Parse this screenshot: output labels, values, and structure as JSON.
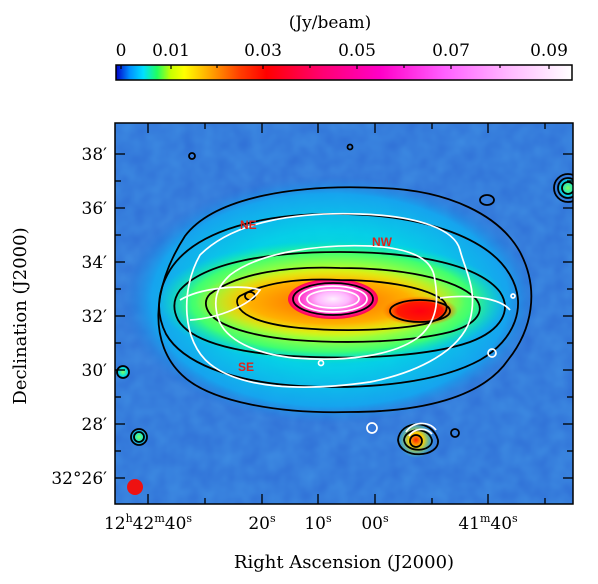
{
  "colorbar": {
    "unit": "(Jy/beam)",
    "ticks": [
      "0",
      "0.01",
      "0.03",
      "0.05",
      "0.07",
      "0.09"
    ]
  },
  "axes": {
    "xlabel": "Right Ascension (J2000)",
    "ylabel": "Declination  (J2000)",
    "x_ticks": [
      {
        "h": "12",
        "hu": "h",
        "m": "42",
        "mu": "m",
        "s": "40",
        "su": "s"
      },
      {
        "s": "20",
        "su": "s"
      },
      {
        "s": "10",
        "su": "s"
      },
      {
        "s": "00",
        "su": "s"
      },
      {
        "m": "41",
        "mu": "m",
        "s": "40",
        "su": "s"
      }
    ],
    "y_ticks": [
      {
        "deg": "",
        "arcmin": "38′"
      },
      {
        "deg": "",
        "arcmin": "36′"
      },
      {
        "deg": "",
        "arcmin": "34′"
      },
      {
        "deg": "",
        "arcmin": "32′"
      },
      {
        "deg": "",
        "arcmin": "30′"
      },
      {
        "deg": "",
        "arcmin": "28′"
      },
      {
        "deg": "32°",
        "arcmin": "26′"
      }
    ]
  },
  "labels": {
    "ne": "NE",
    "nw": "NW",
    "se": "SE"
  },
  "colors": {
    "label": "#e0221a",
    "beam": "#ee1111",
    "background": "#2a6fd8"
  }
}
